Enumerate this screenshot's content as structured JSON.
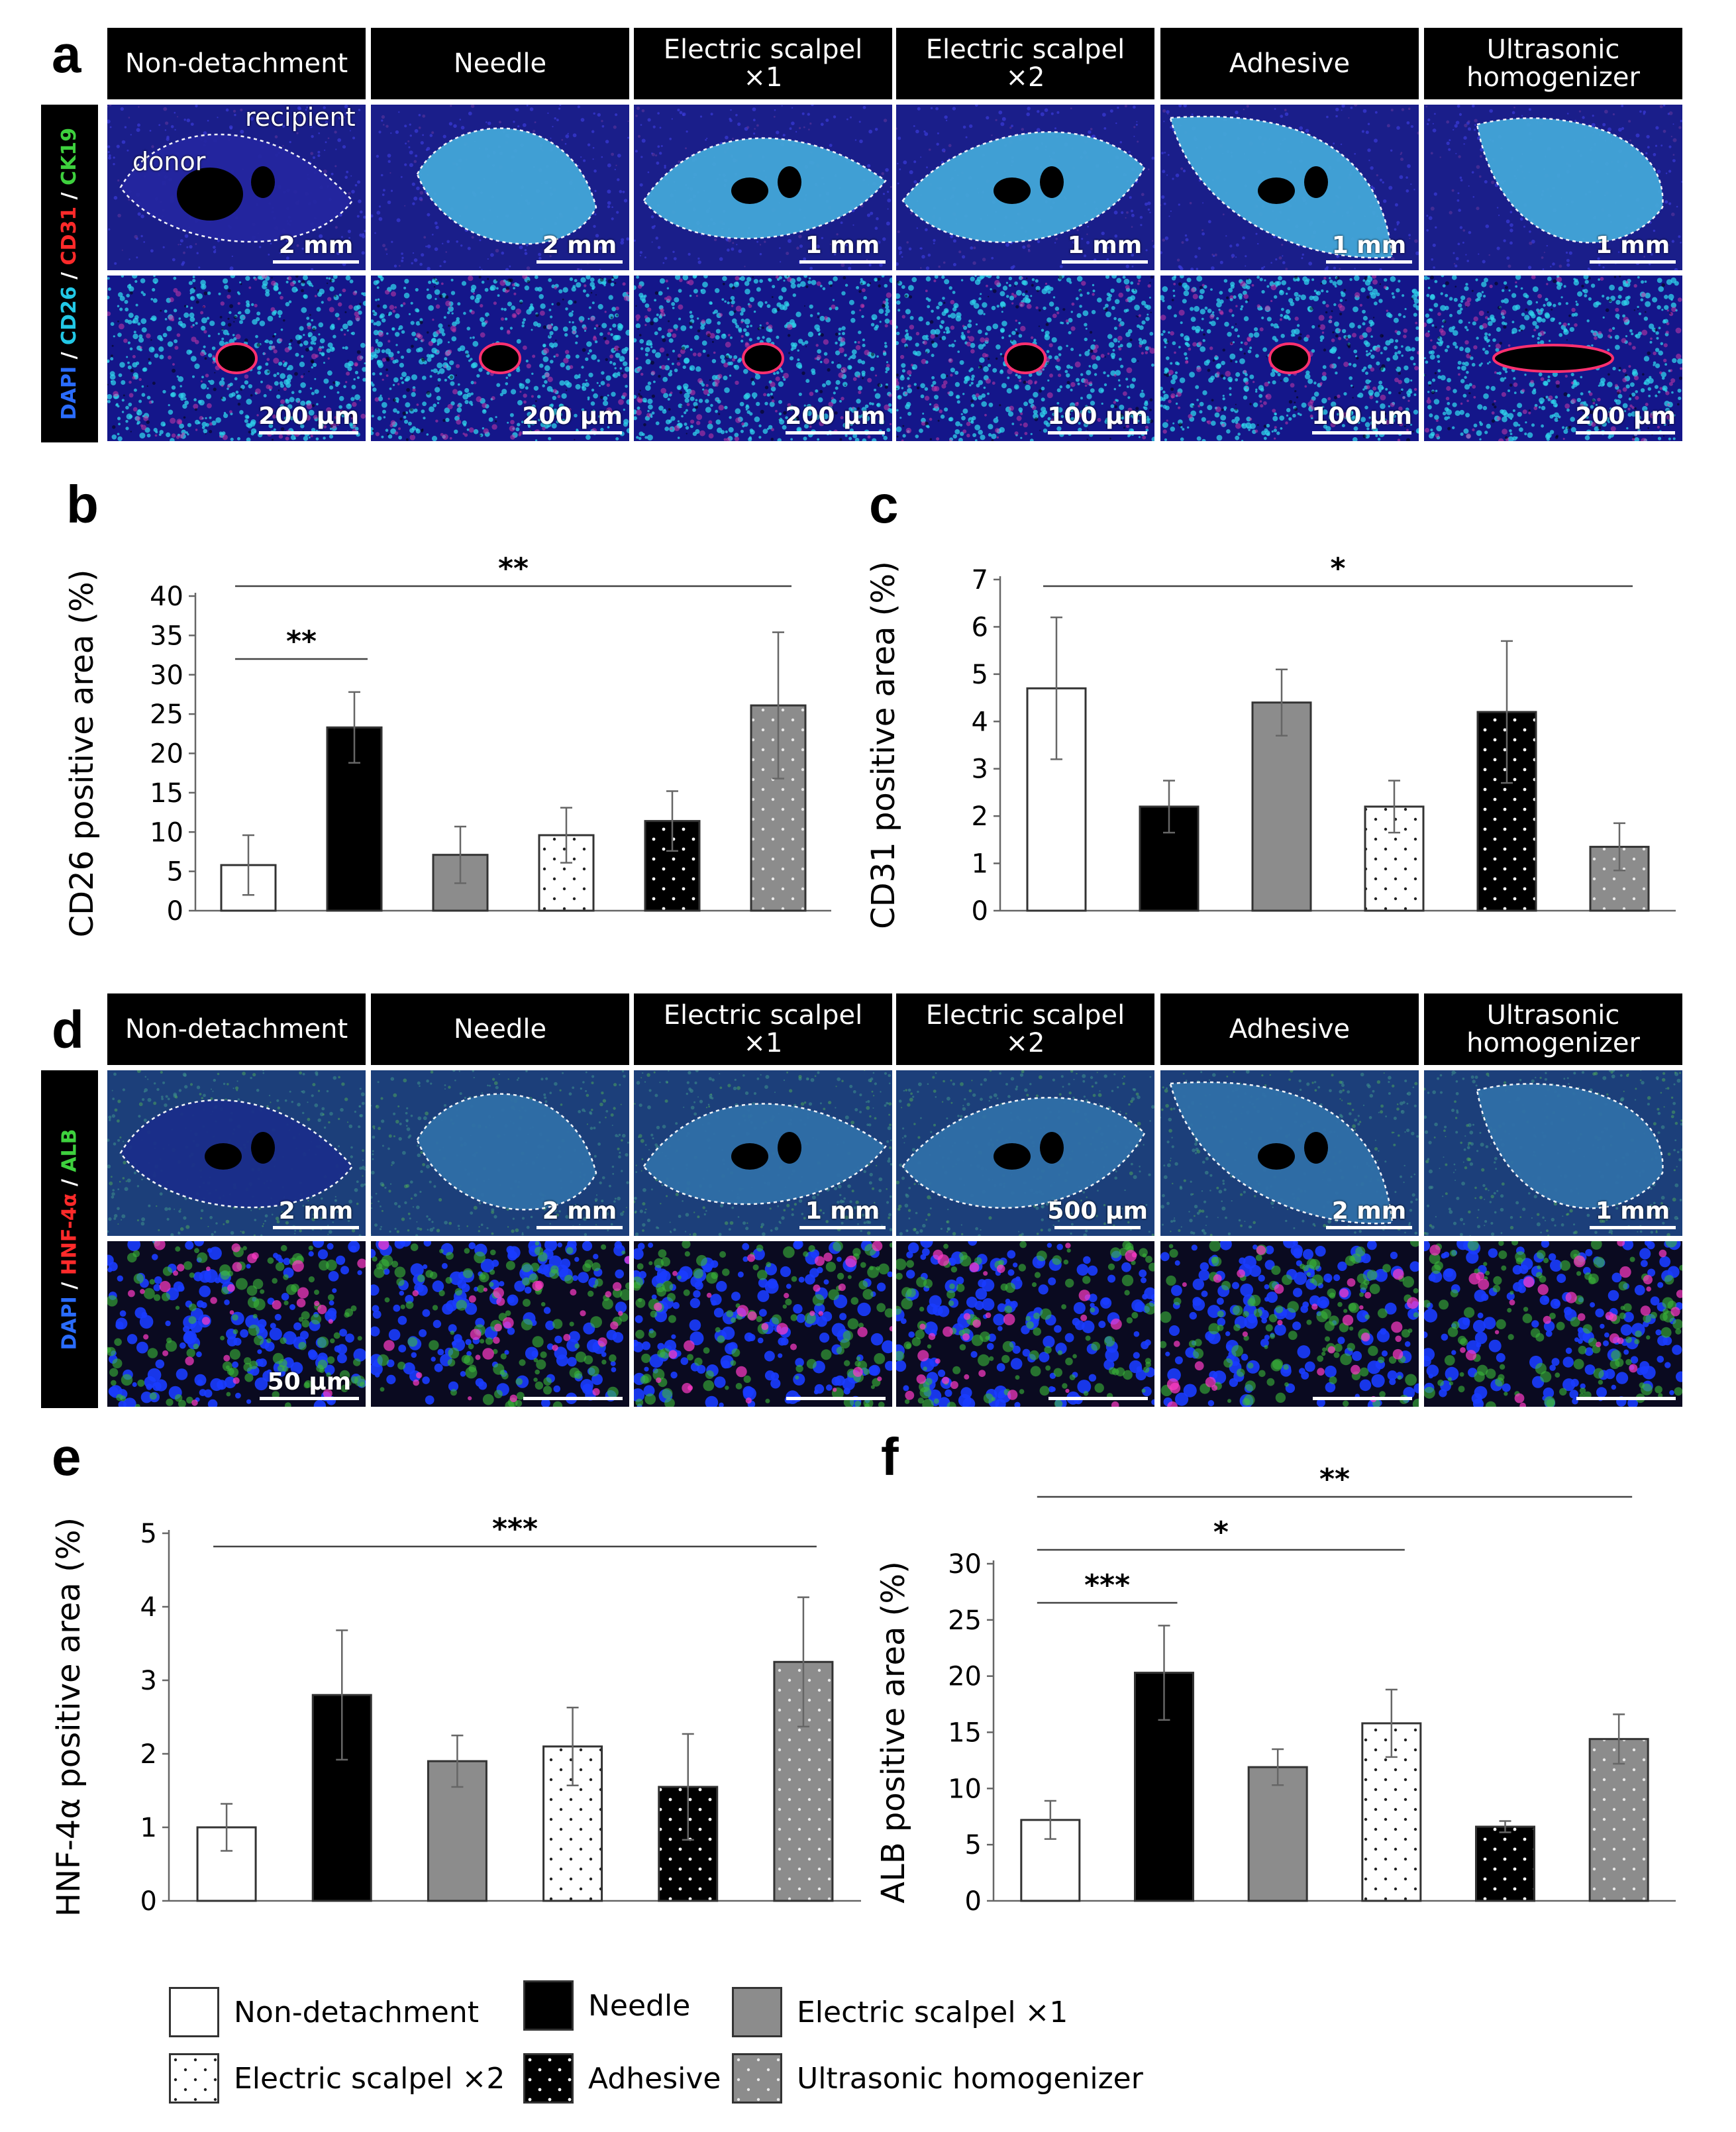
{
  "panels": {
    "a": "a",
    "b": "b",
    "c": "c",
    "d": "d",
    "e": "e",
    "f": "f"
  },
  "groups": [
    "Non-detachment",
    "Needle",
    "Electric scalpel ×1",
    "Electric scalpel ×2",
    "Adhesive",
    "Ultrasonic homogenizer"
  ],
  "panel_a": {
    "headers": [
      "Non-detachment",
      "Needle",
      "Electric scalpel ×1",
      "Electric scalpel ×2",
      "Adhesive",
      "Ultrasonic homogenizer"
    ],
    "stain_parts": [
      {
        "text": "DAPI",
        "color": "#2a6cff"
      },
      {
        "text": " / ",
        "color": "#ffffff"
      },
      {
        "text": "CD26",
        "color": "#22c8e6"
      },
      {
        "text": " / ",
        "color": "#ffffff"
      },
      {
        "text": "CD31",
        "color": "#ff2a2a"
      },
      {
        "text": " / ",
        "color": "#ffffff"
      },
      {
        "text": "CK19",
        "color": "#3ed13e"
      }
    ],
    "tag_recipient": "recipient",
    "tag_donor": "donor",
    "top_scales": [
      "2 mm",
      "2 mm",
      "1 mm",
      "1 mm",
      "1 mm",
      "1 mm"
    ],
    "bottom_scales": [
      "200 µm",
      "200 µm",
      "200 µm",
      "100 µm",
      "100 µm",
      "200 µm"
    ]
  },
  "panel_d": {
    "headers": [
      "Non-detachment",
      "Needle",
      "Electric scalpel ×1",
      "Electric scalpel ×2",
      "Adhesive",
      "Ultrasonic homogenizer"
    ],
    "stain_parts": [
      {
        "text": "DAPI",
        "color": "#2a6cff"
      },
      {
        "text": " / ",
        "color": "#ffffff"
      },
      {
        "text": "HNF-4α",
        "color": "#ff2a2a"
      },
      {
        "text": " / ",
        "color": "#ffffff"
      },
      {
        "text": "ALB",
        "color": "#3ed13e"
      }
    ],
    "top_scales": [
      "2 mm",
      "2 mm",
      "1 mm",
      "500 µm",
      "2 mm",
      "1 mm"
    ],
    "bottom_scales": [
      "50 µm",
      "",
      "",
      "",
      "",
      ""
    ]
  },
  "chart_data": [
    {
      "id": "b",
      "type": "bar",
      "ylabel": "CD26 positive area (%)",
      "ylim": [
        0,
        40
      ],
      "yticks": [
        0,
        5,
        10,
        15,
        20,
        25,
        30,
        35,
        40
      ],
      "categories": [
        "Non-detachment",
        "Needle",
        "Electric scalpel ×1",
        "Electric scalpel ×2",
        "Adhesive",
        "Ultrasonic homogenizer"
      ],
      "values": [
        5.8,
        23.3,
        7.1,
        9.6,
        11.4,
        26.1
      ],
      "errors": [
        3.8,
        4.5,
        3.6,
        3.5,
        3.8,
        9.3
      ],
      "significance": [
        {
          "from": 0,
          "to": 5,
          "label": "**"
        },
        {
          "from": 0,
          "to": 1,
          "label": "**"
        }
      ]
    },
    {
      "id": "c",
      "type": "bar",
      "ylabel": "CD31 positive area (%)",
      "ylim": [
        0,
        7
      ],
      "yticks": [
        0,
        1,
        2,
        3,
        4,
        5,
        6,
        7
      ],
      "categories": [
        "Non-detachment",
        "Needle",
        "Electric scalpel ×1",
        "Electric scalpel ×2",
        "Adhesive",
        "Ultrasonic homogenizer"
      ],
      "values": [
        4.7,
        2.2,
        4.4,
        2.2,
        4.2,
        1.35
      ],
      "errors": [
        1.5,
        0.55,
        0.7,
        0.55,
        1.5,
        0.5
      ],
      "significance": [
        {
          "from": 0,
          "to": 5,
          "label": "*"
        }
      ]
    },
    {
      "id": "e",
      "type": "bar",
      "ylabel": "HNF-4α positive area (%)",
      "ylim": [
        0,
        5
      ],
      "yticks": [
        0,
        1,
        2,
        3,
        4,
        5
      ],
      "categories": [
        "Non-detachment",
        "Needle",
        "Electric scalpel ×1",
        "Electric scalpel ×2",
        "Adhesive",
        "Ultrasonic homogenizer"
      ],
      "values": [
        1.0,
        2.8,
        1.9,
        2.1,
        1.55,
        3.25
      ],
      "errors": [
        0.32,
        0.88,
        0.35,
        0.53,
        0.72,
        0.88
      ],
      "significance": [
        {
          "from": 0,
          "to": 5,
          "label": "***"
        }
      ]
    },
    {
      "id": "f",
      "type": "bar",
      "ylabel": "ALB positive area (%)",
      "ylim": [
        0,
        30
      ],
      "yticks": [
        0,
        5,
        10,
        15,
        20,
        25,
        30
      ],
      "categories": [
        "Non-detachment",
        "Needle",
        "Electric scalpel ×1",
        "Electric scalpel ×2",
        "Adhesive",
        "Ultrasonic homogenizer"
      ],
      "values": [
        7.2,
        20.3,
        11.9,
        15.8,
        6.6,
        14.4
      ],
      "errors": [
        1.7,
        4.2,
        1.6,
        3.0,
        0.5,
        2.2
      ],
      "significance": [
        {
          "from": 0,
          "to": 5,
          "label": "**"
        },
        {
          "from": 0,
          "to": 3,
          "label": "*"
        },
        {
          "from": 0,
          "to": 1,
          "label": "***"
        }
      ]
    }
  ],
  "legend": [
    {
      "label": "Non-detachment",
      "pattern": "white"
    },
    {
      "label": "Needle",
      "pattern": "black"
    },
    {
      "label": "Electric scalpel ×1",
      "pattern": "gray"
    },
    {
      "label": "Electric scalpel ×2",
      "pattern": "white-dots"
    },
    {
      "label": "Adhesive",
      "pattern": "black-dots"
    },
    {
      "label": "Ultrasonic homogenizer",
      "pattern": "gray-dots"
    }
  ],
  "colors": {
    "border": "#333333",
    "gray": "#8c8c8c",
    "black": "#000000",
    "white": "#ffffff"
  }
}
